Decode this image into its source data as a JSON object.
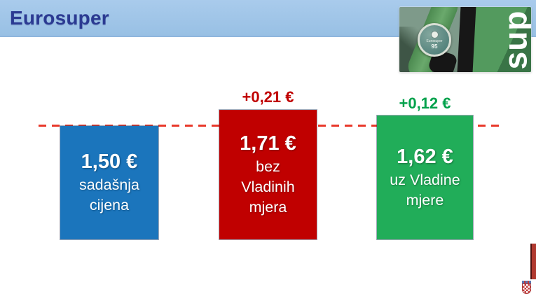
{
  "slide_title": "Eurosuper",
  "photo": {
    "vertical_word": "sup",
    "badge_name": "Eurosuper",
    "badge_octane": "95"
  },
  "chart_data": {
    "type": "bar",
    "title": "Eurosuper",
    "unit": "€",
    "categories": [
      "sadašnja cijena",
      "bez Vladinih mjera",
      "uz Vladine mjere"
    ],
    "values": [
      1.5,
      1.71,
      1.62
    ],
    "value_labels": [
      "1,50 €",
      "1,71 €",
      "1,62 €"
    ],
    "delta_labels": [
      "",
      "+0,21 €",
      "+0,12 €"
    ],
    "baseline": {
      "value": 1.5,
      "style": "dashed",
      "color": "#E8392B"
    },
    "bar_colors": [
      "#1B75BC",
      "#C00000",
      "#21AD59"
    ],
    "delta_colors": [
      "",
      "#C00000",
      "#00A14B"
    ],
    "legend": "none",
    "gridlines": false
  },
  "bars": [
    {
      "price": "1,50 €",
      "lines": [
        "sadašnja",
        "cijena"
      ],
      "delta": ""
    },
    {
      "price": "1,71 €",
      "lines": [
        "bez",
        "Vladinih",
        "mjera"
      ],
      "delta": "+0,21 €"
    },
    {
      "price": "1,62 €",
      "lines": [
        "uz Vladine",
        "mjere"
      ],
      "delta": "+0,12 €"
    }
  ],
  "colors": {
    "header_bg": "#9FC4E6",
    "title_text": "#2B3A92",
    "baseline": "#E8392B",
    "bar_current": "#1B75BC",
    "bar_without": "#C00000",
    "bar_with": "#21AD59",
    "delta_without": "#C00000",
    "delta_with": "#00A14B"
  }
}
